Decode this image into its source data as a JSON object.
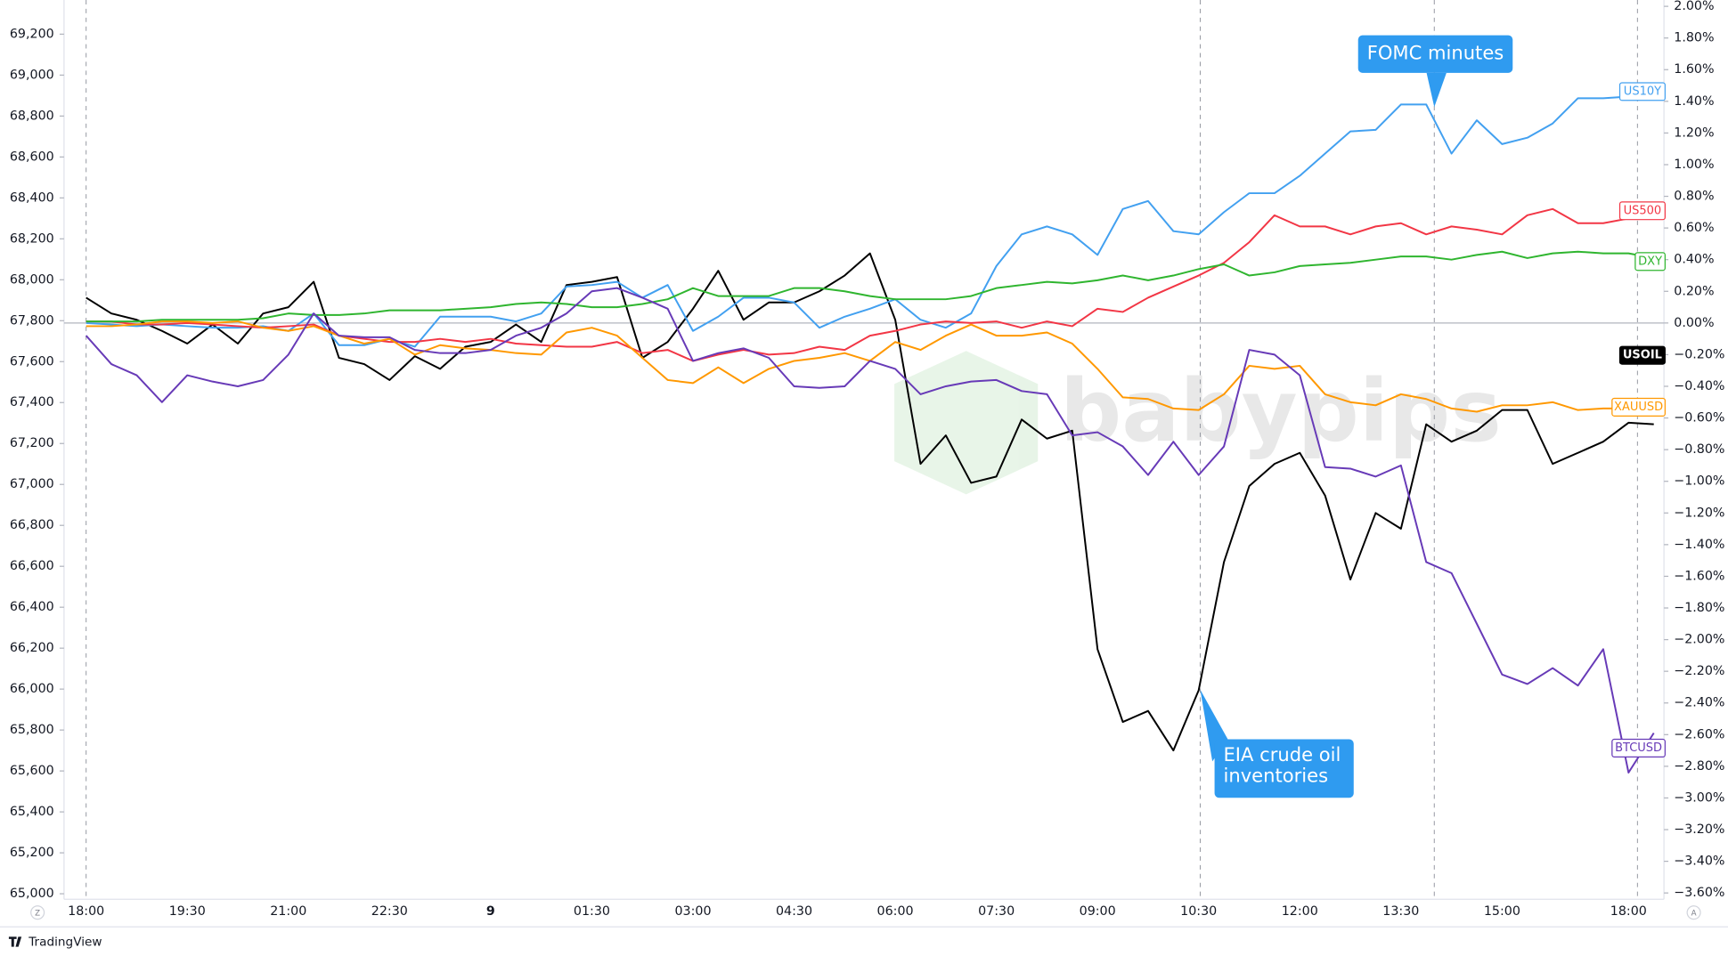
{
  "chart_data": {
    "type": "line",
    "categories": [
      "18:00",
      null,
      null,
      null,
      "19:30",
      null,
      null,
      null,
      "21:00",
      null,
      null,
      null,
      "22:30",
      null,
      null,
      null,
      "9",
      null,
      null,
      null,
      "01:30",
      null,
      null,
      null,
      "03:00",
      null,
      null,
      null,
      "04:30",
      null,
      null,
      null,
      "06:00",
      null,
      null,
      null,
      "07:30",
      null,
      null,
      null,
      "09:00",
      null,
      null,
      null,
      "10:30",
      null,
      null,
      null,
      "12:00",
      null,
      null,
      null,
      "13:30",
      null,
      null,
      null,
      "15:00",
      null,
      null,
      null,
      null,
      "18:00",
      null
    ],
    "series": [
      {
        "name": "USOIL",
        "color": "#000000",
        "axis": "y2",
        "values": [
          0.16,
          0.06,
          0.02,
          -0.05,
          -0.13,
          -0.01,
          -0.13,
          0.06,
          0.1,
          0.26,
          -0.22,
          -0.26,
          -0.36,
          -0.21,
          -0.29,
          -0.15,
          -0.12,
          -0.01,
          -0.12,
          0.24,
          0.26,
          0.29,
          -0.22,
          -0.12,
          0.09,
          0.33,
          0.02,
          0.13,
          0.13,
          0.2,
          0.3,
          0.44,
          0.02,
          -0.89,
          -0.71,
          -1.01,
          -0.97,
          -0.61,
          -0.73,
          -0.68,
          -2.06,
          -2.52,
          -2.45,
          -2.7,
          -2.32,
          -1.51,
          -1.03,
          -0.89,
          -0.82,
          -1.09,
          -1.62,
          -1.2,
          -1.3,
          -0.64,
          -0.75,
          -0.68,
          -0.55,
          -0.55,
          -0.89,
          -0.82,
          -0.75,
          -0.63,
          -0.64
        ]
      },
      {
        "name": "US10Y",
        "color": "#42a0f0",
        "axis": "y2",
        "values": [
          0.0,
          -0.01,
          -0.02,
          -0.01,
          -0.02,
          -0.03,
          -0.03,
          -0.02,
          -0.05,
          0.06,
          -0.14,
          -0.14,
          -0.1,
          -0.15,
          0.04,
          0.04,
          0.04,
          0.01,
          0.06,
          0.23,
          0.24,
          0.26,
          0.16,
          0.24,
          -0.05,
          0.04,
          0.16,
          0.16,
          0.13,
          -0.03,
          0.04,
          0.09,
          0.15,
          0.02,
          -0.03,
          0.06,
          0.36,
          0.56,
          0.61,
          0.56,
          0.43,
          0.72,
          0.77,
          0.58,
          0.56,
          0.7,
          0.82,
          0.82,
          0.93,
          1.07,
          1.21,
          1.22,
          1.38,
          1.38,
          1.07,
          1.28,
          1.13,
          1.17,
          1.26,
          1.42,
          1.42,
          1.43,
          1.49
        ]
      },
      {
        "name": "US500",
        "color": "#f23645",
        "axis": "y2",
        "values": [
          0.01,
          0.01,
          -0.01,
          -0.01,
          0.0,
          -0.01,
          -0.02,
          -0.03,
          -0.02,
          -0.01,
          -0.08,
          -0.1,
          -0.12,
          -0.12,
          -0.1,
          -0.12,
          -0.1,
          -0.13,
          -0.14,
          -0.15,
          -0.15,
          -0.12,
          -0.19,
          -0.17,
          -0.24,
          -0.2,
          -0.17,
          -0.2,
          -0.19,
          -0.15,
          -0.17,
          -0.08,
          -0.05,
          -0.01,
          0.01,
          0.0,
          0.01,
          -0.03,
          0.01,
          -0.02,
          0.09,
          0.07,
          0.16,
          0.23,
          0.3,
          0.38,
          0.51,
          0.68,
          0.61,
          0.61,
          0.56,
          0.61,
          0.63,
          0.56,
          0.61,
          0.59,
          0.56,
          0.68,
          0.72,
          0.63,
          0.63,
          0.66,
          0.68
        ]
      },
      {
        "name": "DXY",
        "color": "#2fb52f",
        "axis": "y2",
        "values": [
          0.01,
          0.01,
          0.01,
          0.02,
          0.02,
          0.02,
          0.02,
          0.03,
          0.06,
          0.05,
          0.05,
          0.06,
          0.08,
          0.08,
          0.08,
          0.09,
          0.1,
          0.12,
          0.13,
          0.12,
          0.1,
          0.1,
          0.12,
          0.15,
          0.22,
          0.17,
          0.17,
          0.17,
          0.22,
          0.22,
          0.2,
          0.17,
          0.15,
          0.15,
          0.15,
          0.17,
          0.22,
          0.24,
          0.26,
          0.25,
          0.27,
          0.3,
          0.27,
          0.3,
          0.34,
          0.37,
          0.3,
          0.32,
          0.36,
          0.37,
          0.38,
          0.4,
          0.42,
          0.42,
          0.4,
          0.43,
          0.45,
          0.41,
          0.44,
          0.45,
          0.44,
          0.44,
          0.41
        ]
      },
      {
        "name": "XAUUSD",
        "color": "#ff9800",
        "axis": "y2",
        "values": [
          -0.02,
          -0.02,
          -0.01,
          0.01,
          0.01,
          0.0,
          0.01,
          -0.03,
          -0.05,
          -0.02,
          -0.08,
          -0.13,
          -0.1,
          -0.2,
          -0.14,
          -0.16,
          -0.17,
          -0.19,
          -0.2,
          -0.06,
          -0.03,
          -0.08,
          -0.22,
          -0.36,
          -0.38,
          -0.28,
          -0.38,
          -0.29,
          -0.24,
          -0.22,
          -0.19,
          -0.24,
          -0.12,
          -0.17,
          -0.08,
          -0.01,
          -0.08,
          -0.08,
          -0.06,
          -0.13,
          -0.29,
          -0.47,
          -0.48,
          -0.54,
          -0.55,
          -0.45,
          -0.27,
          -0.29,
          -0.27,
          -0.45,
          -0.5,
          -0.52,
          -0.45,
          -0.48,
          -0.54,
          -0.56,
          -0.52,
          -0.52,
          -0.5,
          -0.55,
          -0.54,
          -0.54,
          -0.54
        ]
      },
      {
        "name": "BTCUSD",
        "color": "#673ab7",
        "axis": "y2",
        "values": [
          -0.08,
          -0.26,
          -0.33,
          -0.5,
          -0.33,
          -0.37,
          -0.4,
          -0.36,
          -0.2,
          0.06,
          -0.08,
          -0.09,
          -0.09,
          -0.17,
          -0.19,
          -0.19,
          -0.17,
          -0.08,
          -0.03,
          0.06,
          0.2,
          0.22,
          0.16,
          0.09,
          -0.24,
          -0.19,
          -0.16,
          -0.22,
          -0.4,
          -0.41,
          -0.4,
          -0.24,
          -0.29,
          -0.45,
          -0.4,
          -0.37,
          -0.36,
          -0.43,
          -0.45,
          -0.71,
          -0.69,
          -0.78,
          -0.96,
          -0.75,
          -0.96,
          -0.78,
          -0.17,
          -0.2,
          -0.33,
          -0.91,
          -0.92,
          -0.97,
          -0.9,
          -1.51,
          -1.58,
          -1.9,
          -2.22,
          -2.28,
          -2.18,
          -2.29,
          -2.06,
          -2.84,
          -2.59
        ]
      }
    ],
    "ylim": [
      64973,
      69367
    ],
    "yticks": [
      {
        "value": 65000,
        "label": "65,000"
      },
      {
        "value": 65200,
        "label": "65,200"
      },
      {
        "value": 65400,
        "label": "65,400"
      },
      {
        "value": 65600,
        "label": "65,600"
      },
      {
        "value": 65800,
        "label": "65,800"
      },
      {
        "value": 66000,
        "label": "66,000"
      },
      {
        "value": 66200,
        "label": "66,200"
      },
      {
        "value": 66400,
        "label": "66,400"
      },
      {
        "value": 66600,
        "label": "66,600"
      },
      {
        "value": 66800,
        "label": "66,800"
      },
      {
        "value": 67000,
        "label": "67,000"
      },
      {
        "value": 67200,
        "label": "67,200"
      },
      {
        "value": 67400,
        "label": "67,400"
      },
      {
        "value": 67600,
        "label": "67,600"
      },
      {
        "value": 67800,
        "label": "67,800"
      },
      {
        "value": 68000,
        "label": "68,000"
      },
      {
        "value": 68200,
        "label": "68,200"
      },
      {
        "value": 68400,
        "label": "68,400"
      },
      {
        "value": 68600,
        "label": "68,600"
      },
      {
        "value": 68800,
        "label": "68,800"
      },
      {
        "value": 69000,
        "label": "69,000"
      },
      {
        "value": 69200,
        "label": "69,200"
      }
    ],
    "y2lim": [
      -3.64,
      2.04
    ],
    "y2ticks": [
      {
        "value": 2,
        "label": "2.00%"
      },
      {
        "value": 1.8,
        "label": "1.80%"
      },
      {
        "value": 1.6,
        "label": "1.60%"
      },
      {
        "value": 1.4,
        "label": "1.40%"
      },
      {
        "value": 1.2,
        "label": "1.20%"
      },
      {
        "value": 1,
        "label": "1.00%"
      },
      {
        "value": 0.8,
        "label": "0.80%"
      },
      {
        "value": 0.6,
        "label": "0.60%"
      },
      {
        "value": 0.4,
        "label": "0.40%"
      },
      {
        "value": 0.2,
        "label": "0.20%"
      },
      {
        "value": 0,
        "label": "0.00%"
      },
      {
        "value": -0.2,
        "label": "−0.20%"
      },
      {
        "value": -0.4,
        "label": "−0.40%"
      },
      {
        "value": -0.6,
        "label": "−0.60%"
      },
      {
        "value": -0.8,
        "label": "−0.80%"
      },
      {
        "value": -1,
        "label": "−1.00%"
      },
      {
        "value": -1.2,
        "label": "−1.20%"
      },
      {
        "value": -1.4,
        "label": "−1.40%"
      },
      {
        "value": -1.6,
        "label": "−1.60%"
      },
      {
        "value": -1.8,
        "label": "−1.80%"
      },
      {
        "value": -2,
        "label": "−2.00%"
      },
      {
        "value": -2.2,
        "label": "−2.20%"
      },
      {
        "value": -2.4,
        "label": "−2.40%"
      },
      {
        "value": -2.6,
        "label": "−2.60%"
      },
      {
        "value": -2.8,
        "label": "−2.80%"
      },
      {
        "value": -3,
        "label": "−3.00%"
      },
      {
        "value": -3.2,
        "label": "−3.20%"
      },
      {
        "value": -3.4,
        "label": "−3.40%"
      },
      {
        "value": -3.6,
        "label": "−3.60%"
      }
    ],
    "grid": false,
    "annotations": [
      {
        "lines": [
          "FOMC minutes"
        ],
        "color": "#2f9bf0"
      },
      {
        "lines": [
          "EIA crude oil",
          "inventories"
        ],
        "color": "#2f9bf0"
      }
    ],
    "watermark": "babypips",
    "scale_buttons": [
      "Z",
      "A"
    ],
    "brand": "TradingView"
  }
}
